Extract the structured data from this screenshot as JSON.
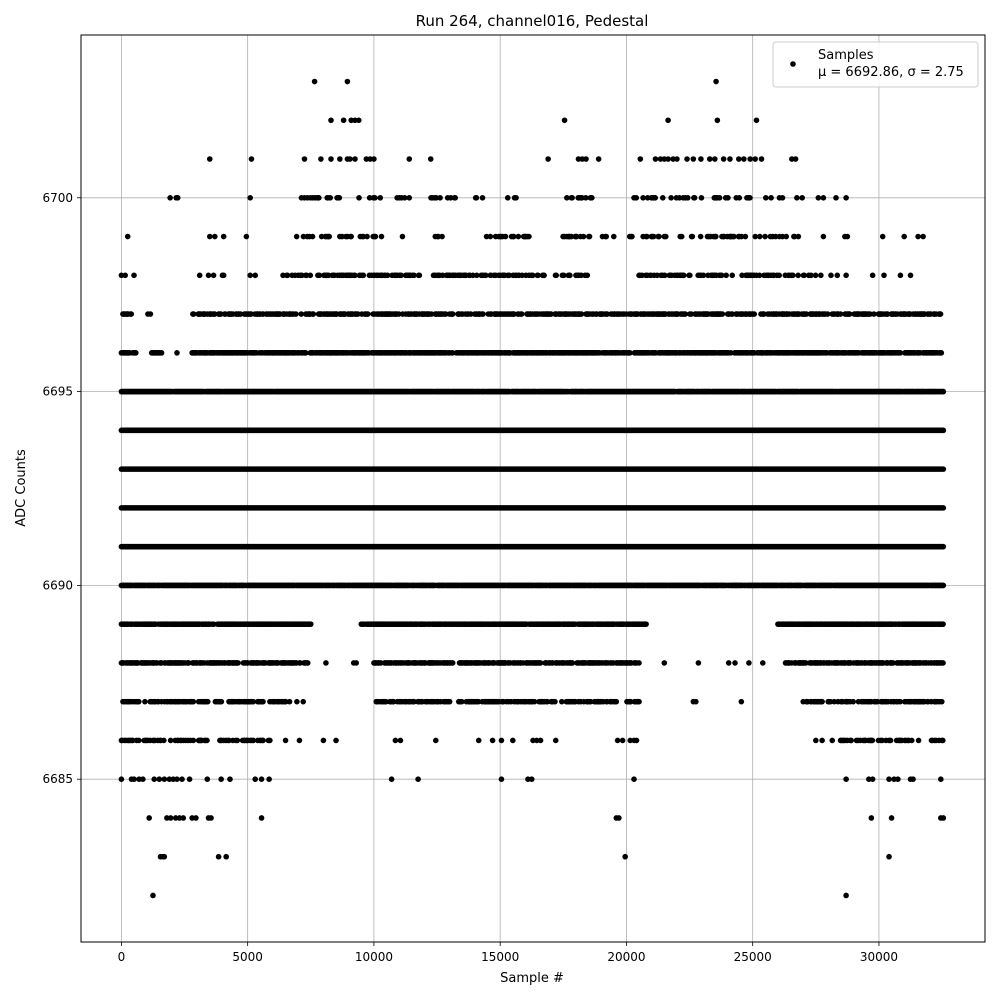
{
  "chart_data": {
    "type": "scatter",
    "title": "Run 264, channel016, Pedestal",
    "xlabel": "Sample #",
    "ylabel": "ADC Counts",
    "xlim": [
      -1600,
      34200
    ],
    "ylim": [
      6680.8,
      6704.2
    ],
    "xticks": [
      0,
      5000,
      10000,
      15000,
      20000,
      25000,
      30000
    ],
    "yticks": [
      6685,
      6690,
      6695,
      6700
    ],
    "grid": true,
    "legend_position": "top-right",
    "marker_color": "#000000",
    "series": [
      {
        "name": "Samples",
        "label_line2": "μ = 6692.86, σ = 2.75",
        "x_range": [
          0,
          32550
        ],
        "levels": [
          {
            "y": 6703,
            "x": [
              7650,
              8950,
              23550
            ]
          },
          {
            "y": 6702,
            "x": [
              8300,
              8800,
              9100,
              9250,
              9400,
              17550,
              21650,
              23600,
              25150
            ]
          },
          {
            "y": 6701,
            "x": [
              3500,
              5150,
              7250,
              7900,
              8300,
              8650,
              8950,
              9050,
              9250,
              9700,
              9850,
              10000,
              11400,
              12250,
              16900,
              18100,
              18250,
              18400,
              18900,
              20550,
              21150,
              21350,
              21500,
              21650,
              21850,
              22000,
              22400,
              22650,
              22950,
              23300,
              23500,
              23850,
              24100,
              24450,
              24650,
              24900,
              25100,
              25350,
              26550,
              26700
            ]
          },
          {
            "y": 6700,
            "x_runs": [
              [
                1900,
                2250
              ],
              [
                4250,
                4300
              ],
              [
                5100,
                5150
              ],
              [
                6800,
                10300
              ],
              [
                10800,
                11400
              ],
              [
                12200,
                13400
              ],
              [
                14000,
                14400
              ],
              [
                15000,
                15800
              ],
              [
                17400,
                18800
              ],
              [
                20300,
                27000
              ]
            ],
            "x": [
              27600,
              27800,
              28300,
              28700
            ],
            "density": 0.18
          },
          {
            "y": 6699,
            "x_runs": [
              [
                6700,
                10500
              ],
              [
                11100,
                11400
              ],
              [
                12400,
                13000
              ],
              [
                14400,
                16200
              ],
              [
                17400,
                20300
              ],
              [
                20600,
                27000
              ]
            ],
            "x": [
              250,
              3500,
              3700,
              4050,
              4950,
              27800,
              28650,
              28750,
              30150,
              31000,
              31550,
              31750
            ],
            "density": 0.22
          },
          {
            "y": 6698,
            "x_runs": [
              [
                6400,
                12000
              ],
              [
                12300,
                18500
              ],
              [
                20500,
                27500
              ]
            ],
            "x": [
              0,
              150,
              500,
              3100,
              3450,
              3650,
              4000,
              4050,
              5100,
              5300,
              27700,
              28100,
              28350,
              28700,
              29750,
              30200,
              30850,
              31250
            ],
            "density": 0.35
          },
          {
            "y": 6697,
            "x_runs": [
              [
                0,
                400
              ],
              [
                2800,
                32500
              ]
            ],
            "x": [
              1050,
              1150
            ],
            "density": 0.55
          },
          {
            "y": 6696,
            "x_runs": [
              [
                0,
                600
              ],
              [
                1200,
                1600
              ],
              [
                2800,
                32500
              ]
            ],
            "x": [
              2200
            ],
            "density": 0.75
          },
          {
            "y": 6695,
            "x_runs": [
              [
                0,
                32550
              ]
            ],
            "density": 0.95
          },
          {
            "y": 6694,
            "x_runs": [
              [
                0,
                32550
              ]
            ],
            "density": 1.0
          },
          {
            "y": 6693,
            "x_runs": [
              [
                0,
                32550
              ]
            ],
            "density": 1.0
          },
          {
            "y": 6692,
            "x_runs": [
              [
                0,
                32550
              ]
            ],
            "density": 1.0
          },
          {
            "y": 6691,
            "x_runs": [
              [
                0,
                32550
              ]
            ],
            "density": 1.0
          },
          {
            "y": 6690,
            "x_runs": [
              [
                0,
                32550
              ]
            ],
            "density": 0.95
          },
          {
            "y": 6689,
            "x_runs": [
              [
                0,
                7500
              ],
              [
                9500,
                20800
              ],
              [
                26000,
                32550
              ]
            ],
            "density": 0.8
          },
          {
            "y": 6688,
            "x_runs": [
              [
                0,
                7400
              ],
              [
                10000,
                20500
              ],
              [
                26300,
                32550
              ]
            ],
            "x": [
              8100,
              9200,
              9300,
              21500,
              22850,
              24050,
              24300,
              24850,
              25400
            ],
            "density": 0.65
          },
          {
            "y": 6687,
            "x_runs": [
              [
                0,
                6700
              ],
              [
                10000,
                20500
              ],
              [
                27000,
                32550
              ]
            ],
            "x": [
              6950,
              7200,
              22650,
              22750,
              24550
            ],
            "density": 0.45
          },
          {
            "y": 6686,
            "x_runs": [
              [
                0,
                3500
              ],
              [
                3900,
                6000
              ],
              [
                28000,
                32550
              ]
            ],
            "x": [
              6500,
              7050,
              8000,
              8500,
              10850,
              11050,
              12450,
              14150,
              14700,
              15050,
              15500,
              16300,
              16450,
              16600,
              17200,
              19650,
              19850,
              20150,
              20300,
              20400,
              27500,
              27750
            ],
            "density": 0.3
          },
          {
            "y": 6685,
            "x": [
              0,
              400,
              500,
              700,
              850,
              1300,
              1500,
              1700,
              1900,
              2050,
              2200,
              2400,
              2700,
              3400,
              3950,
              4300,
              5300,
              5550,
              5850,
              10700,
              11750,
              15050,
              16100,
              16250,
              20300,
              28700,
              29600,
              29750,
              30400,
              30600,
              30750,
              31250,
              31350,
              32450
            ]
          },
          {
            "y": 6684,
            "x": [
              1100,
              1800,
              1950,
              2150,
              2300,
              2450,
              2800,
              2950,
              3450,
              3550,
              5550,
              19600,
              19700,
              29700,
              30500,
              32450,
              32550
            ]
          },
          {
            "y": 6683,
            "x": [
              1550,
              1650,
              1700,
              3850,
              4150,
              19950,
              30400
            ]
          },
          {
            "y": 6682,
            "x": [
              1250,
              28700
            ]
          }
        ]
      }
    ]
  }
}
